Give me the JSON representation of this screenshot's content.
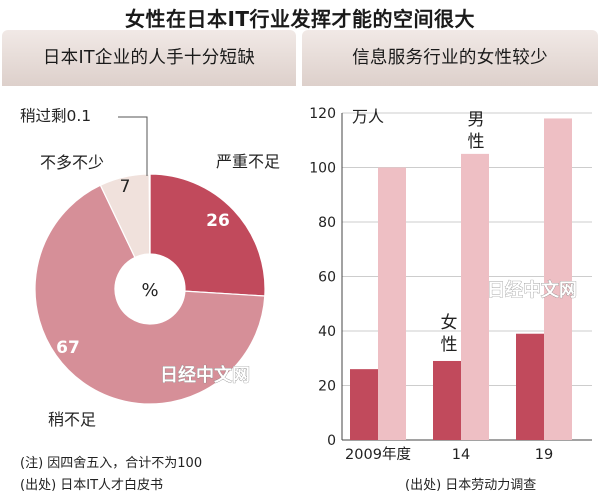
{
  "title": "女性在日本IT行业发挥才能的空间很大",
  "colors": {
    "dark": "#c14a5c",
    "mid": "#d68f98",
    "light": "#eebfc4",
    "pale": "#f0e1dc",
    "white": "#ffffff",
    "panel_gradient_top": "#f1e9e6",
    "panel_gradient_bottom": "#ddd0cb"
  },
  "watermark": "日经中文网",
  "chart_data": [
    {
      "type": "pie",
      "title": "日本IT企业的人手十分短缺",
      "center_label": "%",
      "slices": [
        {
          "label": "严重不足",
          "value": 26,
          "value_label": "26",
          "color": "#c14a5c"
        },
        {
          "label": "稍不足",
          "value": 67,
          "value_label": "67",
          "color": "#d68f98"
        },
        {
          "label": "不多不少",
          "value": 7,
          "value_label": "7",
          "color": "#f0e1dc"
        },
        {
          "label": "稍过剩",
          "value": 0.1,
          "value_label": "0.1",
          "color": "#ffffff"
        }
      ],
      "notes": [
        "(注) 因四舍五入，合计不为100",
        "(出处) 日本IT人才白皮书"
      ]
    },
    {
      "type": "bar",
      "title": "信息服务行业的女性较少",
      "unit_label": "万人",
      "categories": [
        "2009年度",
        "14",
        "19"
      ],
      "ylim": [
        0,
        120
      ],
      "yticks": [
        0,
        20,
        40,
        60,
        80,
        100,
        120
      ],
      "series": [
        {
          "name": "女性",
          "values": [
            26,
            29,
            39
          ],
          "color": "#c14a5c"
        },
        {
          "name": "男性",
          "values": [
            100,
            105,
            118
          ],
          "color": "#eebfc4"
        }
      ],
      "source": "(出处) 日本劳动力调查"
    }
  ]
}
